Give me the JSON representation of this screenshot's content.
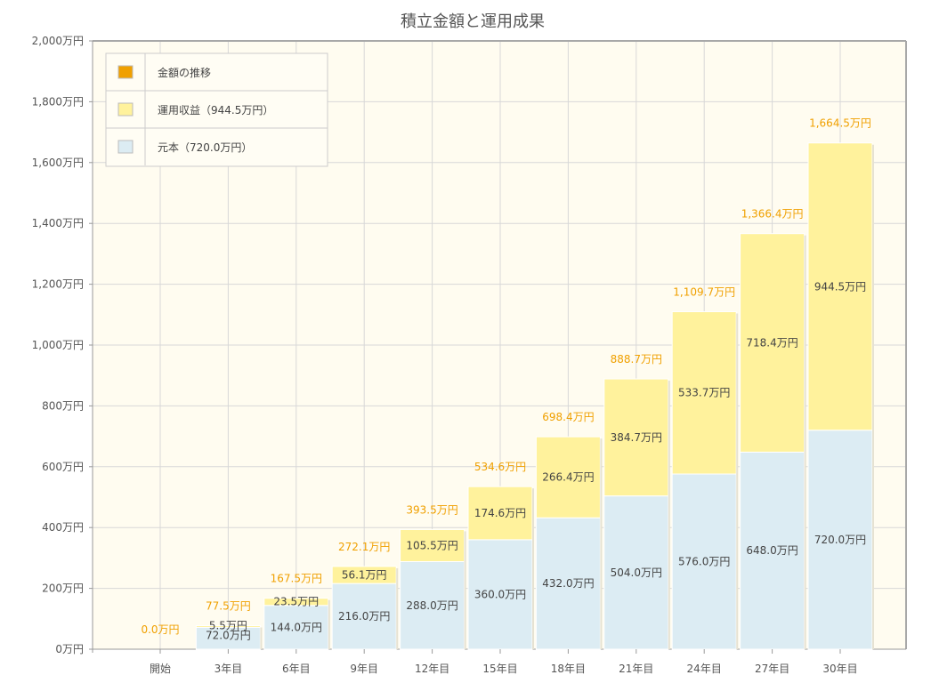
{
  "chart_data": {
    "type": "bar",
    "stacked": true,
    "title": "積立金額と運用成果",
    "categories": [
      "開始",
      "3年目",
      "6年目",
      "9年目",
      "12年目",
      "15年目",
      "18年目",
      "21年目",
      "24年目",
      "27年目",
      "30年目"
    ],
    "series": [
      {
        "name": "元本（720.0万円）",
        "color": "#dcecf3",
        "values": [
          0,
          72.0,
          144.0,
          216.0,
          288.0,
          360.0,
          432.0,
          504.0,
          576.0,
          648.0,
          720.0
        ],
        "labels": [
          "",
          "72.0万円",
          "144.0万円",
          "216.0万円",
          "288.0万円",
          "360.0万円",
          "432.0万円",
          "504.0万円",
          "576.0万円",
          "648.0万円",
          "720.0万円"
        ]
      },
      {
        "name": "運用収益（944.5万円）",
        "color": "#fff29c",
        "values": [
          0,
          5.5,
          23.5,
          56.1,
          105.5,
          174.6,
          266.4,
          384.7,
          533.7,
          718.4,
          944.5
        ],
        "labels": [
          "",
          "5.5万円",
          "23.5万円",
          "56.1万円",
          "105.5万円",
          "174.6万円",
          "266.4万円",
          "384.7万円",
          "533.7万円",
          "718.4万円",
          "944.5万円"
        ]
      }
    ],
    "totals": {
      "name": "金額の推移",
      "color": "#f0a000",
      "values": [
        0.0,
        77.5,
        167.5,
        272.1,
        393.5,
        534.6,
        698.4,
        888.7,
        1109.7,
        1366.4,
        1664.5
      ],
      "labels": [
        "0.0万円",
        "77.5万円",
        "167.5万円",
        "272.1万円",
        "393.5万円",
        "534.6万円",
        "698.4万円",
        "888.7万円",
        "1,109.7万円",
        "1,366.4万円",
        "1,664.5万円"
      ]
    },
    "yaxis": {
      "ylim": [
        0,
        2000
      ],
      "ticks": [
        0,
        200,
        400,
        600,
        800,
        1000,
        1200,
        1400,
        1600,
        1800,
        2000
      ],
      "tick_labels": [
        "0万円",
        "200万円",
        "400万円",
        "600万円",
        "800万円",
        "1,000万円",
        "1,200万円",
        "1,400万円",
        "1,600万円",
        "1,800万円",
        "2,000万円"
      ]
    },
    "grid": true,
    "legend": {
      "position": "top-left",
      "items": [
        {
          "label": "金額の推移",
          "color": "#f0a000"
        },
        {
          "label": "運用収益（944.5万円）",
          "color": "#fff29c"
        },
        {
          "label": "元本（720.0万円）",
          "color": "#dcecf3"
        }
      ]
    },
    "colors": {
      "background": "#fffcf0",
      "grid": "#d8d8d8",
      "axis": "#999999"
    }
  }
}
